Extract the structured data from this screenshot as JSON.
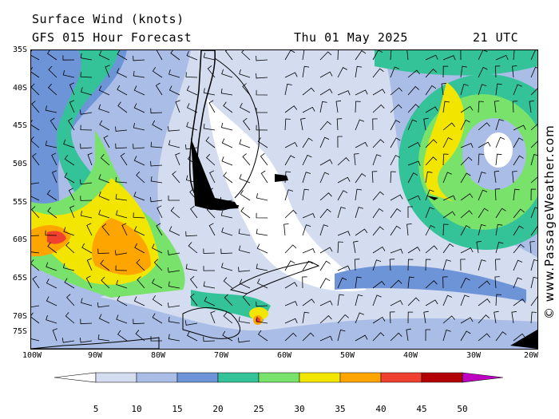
{
  "header": {
    "title": "Surface Wind (knots)",
    "subtitle": "GFS 015 Hour Forecast",
    "date": "Thu 01 May 2025",
    "time": "21 UTC"
  },
  "credit": "© www.PassageWeather.com",
  "axes": {
    "lat_labels": [
      "35S",
      "40S",
      "45S",
      "50S",
      "55S",
      "60S",
      "65S",
      "70S",
      "75S"
    ],
    "lon_labels": [
      "100W",
      "90W",
      "80W",
      "70W",
      "60W",
      "50W",
      "40W",
      "30W",
      "20W"
    ]
  },
  "colorbar": {
    "labels": [
      "5",
      "10",
      "15",
      "20",
      "25",
      "30",
      "35",
      "40",
      "45",
      "50"
    ],
    "colors": [
      "#ffffff",
      "#d4dcf0",
      "#a9bde6",
      "#6e94d8",
      "#34c298",
      "#79e26b",
      "#f2e600",
      "#ffa500",
      "#f04030",
      "#b30000",
      "#c000c0"
    ]
  },
  "map": {
    "region": "South America tip, Antarctic Peninsula, South Atlantic",
    "features": [
      "Tierra del Fuego",
      "Falkland Islands",
      "South Georgia",
      "South Shetland Islands",
      "Antarctic Peninsula"
    ]
  }
}
